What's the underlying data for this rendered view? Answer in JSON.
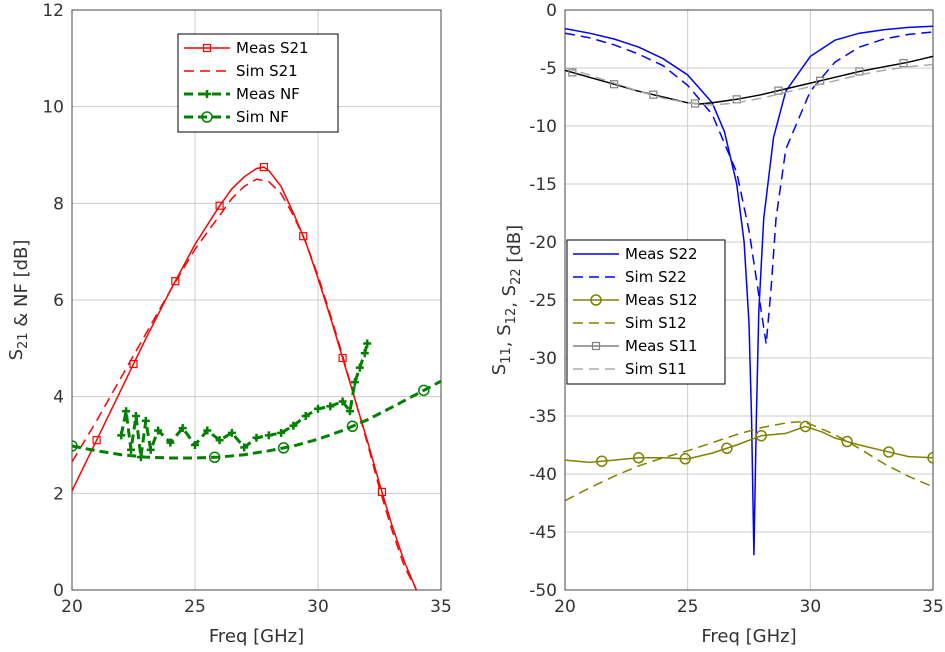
{
  "chart_data": [
    {
      "type": "line",
      "xlabel": "Freq [GHz]",
      "ylabel": "S21 & NF [dB]",
      "xlim": [
        20,
        35
      ],
      "ylim": [
        0,
        12
      ],
      "xticks": [
        20,
        25,
        30,
        35
      ],
      "yticks": [
        0,
        2,
        4,
        6,
        8,
        10,
        12
      ],
      "grid": true,
      "legend_position": "top-center",
      "series": [
        {
          "name": "Meas S21",
          "color": "#ff0000",
          "dash": "solid",
          "marker": "square",
          "marker_x": [
            21,
            22.5,
            24.2,
            26,
            27.8,
            29.4,
            31,
            32.6
          ],
          "x": [
            20,
            21,
            22,
            23,
            24,
            25,
            26,
            26.5,
            27,
            27.5,
            27.8,
            28,
            28.5,
            29,
            29.5,
            30,
            30.5,
            31,
            31.5,
            32,
            32.5,
            33,
            33.5,
            34
          ],
          "y": [
            2.05,
            3.1,
            4.15,
            5.2,
            6.2,
            7.15,
            7.95,
            8.3,
            8.55,
            8.72,
            8.75,
            8.68,
            8.35,
            7.8,
            7.2,
            6.45,
            5.65,
            4.8,
            3.95,
            3.1,
            2.2,
            1.35,
            0.6,
            0.0
          ]
        },
        {
          "name": "Sim S21",
          "color": "#ff0000",
          "dash": "dashed",
          "x": [
            20,
            21,
            22,
            23,
            24,
            25,
            26,
            26.5,
            27,
            27.5,
            28,
            28.5,
            29,
            29.5,
            30,
            30.5,
            31,
            31.5,
            32,
            32.5,
            33,
            33.5,
            34
          ],
          "y": [
            2.65,
            3.5,
            4.4,
            5.3,
            6.2,
            7.05,
            7.75,
            8.1,
            8.35,
            8.5,
            8.45,
            8.2,
            7.75,
            7.2,
            6.5,
            5.7,
            4.85,
            3.95,
            3.05,
            2.1,
            1.25,
            0.5,
            0.0
          ]
        },
        {
          "name": "Meas NF",
          "color": "#008000",
          "dash": "dashed",
          "marker": "plus",
          "x": [
            22,
            22.2,
            22.4,
            22.6,
            22.8,
            23,
            23.2,
            23.5,
            24,
            24.5,
            25,
            25.5,
            26,
            26.5,
            27,
            27.5,
            28,
            28.5,
            29,
            29.5,
            30,
            30.5,
            31,
            31.3,
            31.5,
            31.7,
            31.9,
            32
          ],
          "y": [
            3.2,
            3.7,
            2.9,
            3.6,
            2.75,
            3.5,
            2.9,
            3.3,
            3.05,
            3.35,
            3.0,
            3.3,
            3.1,
            3.25,
            2.95,
            3.15,
            3.2,
            3.25,
            3.4,
            3.6,
            3.75,
            3.8,
            3.9,
            3.7,
            4.3,
            4.6,
            4.9,
            5.1
          ]
        },
        {
          "name": "Sim NF",
          "color": "#008000",
          "dash": "dashed",
          "marker": "circle",
          "marker_x": [
            20,
            25.8,
            28.6,
            31.4,
            34.3
          ],
          "x": [
            20,
            21,
            22,
            23,
            24,
            25,
            26,
            27,
            28,
            29,
            30,
            31,
            32,
            33,
            34,
            35
          ],
          "y": [
            2.98,
            2.88,
            2.8,
            2.75,
            2.73,
            2.73,
            2.75,
            2.8,
            2.88,
            2.98,
            3.12,
            3.3,
            3.52,
            3.78,
            4.05,
            4.32
          ]
        }
      ]
    },
    {
      "type": "line",
      "xlabel": "Freq [GHz]",
      "ylabel": "S11, S12, S22 [dB]",
      "xlim": [
        20,
        35
      ],
      "ylim": [
        -50,
        0
      ],
      "xticks": [
        20,
        25,
        30,
        35
      ],
      "yticks": [
        -50,
        -45,
        -40,
        -35,
        -30,
        -25,
        -20,
        -15,
        -10,
        -5,
        0
      ],
      "grid": true,
      "legend_position": "center-left",
      "series": [
        {
          "name": "Meas S22",
          "color": "#0000ff",
          "dash": "solid",
          "x": [
            20,
            21,
            22,
            23,
            24,
            25,
            26,
            26.5,
            27,
            27.3,
            27.5,
            27.6,
            27.7,
            27.8,
            27.9,
            28.1,
            28.5,
            29,
            30,
            31,
            32,
            33,
            34,
            35
          ],
          "y": [
            -1.6,
            -2.0,
            -2.5,
            -3.2,
            -4.2,
            -5.6,
            -8.0,
            -10.5,
            -15.0,
            -20.0,
            -27.0,
            -35.0,
            -47.0,
            -35.0,
            -26.0,
            -18.0,
            -11.0,
            -7.0,
            -4.0,
            -2.6,
            -2.0,
            -1.7,
            -1.5,
            -1.4
          ]
        },
        {
          "name": "Sim S22",
          "color": "#0000ff",
          "dash": "dashed",
          "x": [
            20,
            21,
            22,
            23,
            24,
            25,
            26,
            27,
            27.5,
            28,
            28.2,
            28.4,
            28.6,
            29,
            30,
            31,
            32,
            33,
            34,
            35
          ],
          "y": [
            -2.0,
            -2.4,
            -3.0,
            -3.8,
            -4.8,
            -6.5,
            -9.0,
            -14.0,
            -19.0,
            -26.0,
            -28.8,
            -24.0,
            -18.0,
            -12.0,
            -7.0,
            -4.5,
            -3.2,
            -2.5,
            -2.1,
            -1.9
          ]
        },
        {
          "name": "Meas S12",
          "color": "#808000",
          "dash": "solid",
          "marker": "circle",
          "marker_x": [
            21.5,
            23,
            24.9,
            26.6,
            28,
            29.8,
            31.5,
            33.2,
            35
          ],
          "x": [
            20,
            21,
            22,
            23,
            24,
            25,
            26,
            27,
            28,
            29,
            29.8,
            30.5,
            31,
            32,
            33,
            34,
            35
          ],
          "y": [
            -38.8,
            -39.0,
            -38.8,
            -38.6,
            -38.6,
            -38.7,
            -38.2,
            -37.5,
            -36.7,
            -36.5,
            -35.9,
            -36.4,
            -36.9,
            -37.5,
            -38.0,
            -38.5,
            -38.6
          ]
        },
        {
          "name": "Sim S12",
          "color": "#808000",
          "dash": "dashed",
          "x": [
            20,
            21,
            22,
            23,
            24,
            25,
            26,
            27,
            28,
            29,
            29.5,
            30,
            31,
            32,
            33,
            34,
            35
          ],
          "y": [
            -42.3,
            -41.2,
            -40.2,
            -39.3,
            -38.6,
            -38.0,
            -37.3,
            -36.6,
            -36.0,
            -35.6,
            -35.5,
            -35.7,
            -36.6,
            -37.8,
            -39.1,
            -40.2,
            -41.1
          ]
        },
        {
          "name": "Meas S11",
          "color": "#808080",
          "line_color": "#000000",
          "dash": "solid",
          "marker": "square",
          "marker_x": [
            20.3,
            22,
            23.6,
            25.3,
            27,
            28.7,
            30.4,
            32,
            33.8
          ],
          "x": [
            20,
            21,
            22,
            23,
            24,
            25,
            25.5,
            26,
            27,
            28,
            29,
            30,
            31,
            32,
            33,
            34,
            35
          ],
          "y": [
            -5.2,
            -5.8,
            -6.4,
            -7.0,
            -7.5,
            -8.0,
            -8.1,
            -8.0,
            -7.7,
            -7.3,
            -6.8,
            -6.3,
            -5.8,
            -5.3,
            -4.9,
            -4.5,
            -4.0
          ]
        },
        {
          "name": "Sim S11",
          "color": "#aaaaaa",
          "dash": "dashed",
          "x": [
            20,
            21,
            22,
            23,
            24,
            25,
            26,
            27,
            28,
            29,
            30,
            31,
            32,
            33,
            34,
            35
          ],
          "y": [
            -5.0,
            -5.6,
            -6.3,
            -7.0,
            -7.6,
            -8.0,
            -8.2,
            -8.0,
            -7.6,
            -7.1,
            -6.6,
            -6.1,
            -5.6,
            -5.2,
            -4.9,
            -4.7
          ]
        }
      ]
    }
  ]
}
